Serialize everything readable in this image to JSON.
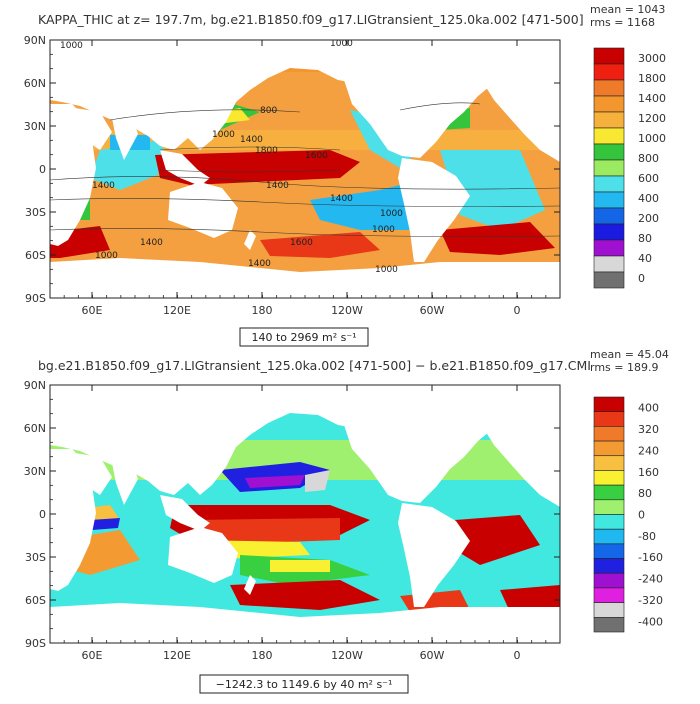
{
  "chart_data": [
    {
      "type": "heatmap",
      "title": "KAPPA_THIC at z= 197.7m, bg.e21.B1850.f09_g17.LIGtransient_125.0ka.002 [471-500]",
      "stats": {
        "mean": "mean = 1043",
        "rms": "rms = 1168"
      },
      "x_ticks": [
        "60E",
        "120E",
        "180",
        "120W",
        "60W",
        "0"
      ],
      "y_ticks": [
        "90N",
        "60N",
        "30N",
        "0",
        "30S",
        "60S",
        "90S"
      ],
      "colorbar_levels": [
        "3000",
        "1800",
        "1400",
        "1200",
        "1000",
        "800",
        "600",
        "400",
        "200",
        "80",
        "40",
        "0"
      ],
      "colorbar_colors": [
        "#c80000",
        "#f02010",
        "#ee7a2a",
        "#f3962e",
        "#f6b13c",
        "#f8e832",
        "#35c53c",
        "#9aeb62",
        "#4de0e8",
        "#23b8f0",
        "#1466e6",
        "#1a1ae0",
        "#a010d0",
        "#d8d8d8",
        "#707070"
      ],
      "range_label": "140 to 2969 m² s⁻¹",
      "contour_labels": [
        "1000",
        "1000",
        "800",
        "1000",
        "1400",
        "1800",
        "1600",
        "1400",
        "1400",
        "1400",
        "1000",
        "1000",
        "1400",
        "1600",
        "1400",
        "1000",
        "1000"
      ]
    },
    {
      "type": "heatmap",
      "title": "bg.e21.B1850.f09_g17.LIGtransient_125.0ka.002 [471-500] − b.e21.B1850.f09_g17.CMI",
      "stats": {
        "mean": "mean = 45.04",
        "rms": "rms = 189.9"
      },
      "x_ticks": [
        "60E",
        "120E",
        "180",
        "120W",
        "60W",
        "0"
      ],
      "y_ticks": [
        "90N",
        "60N",
        "30N",
        "0",
        "30S",
        "60S",
        "90S"
      ],
      "colorbar_levels": [
        "400",
        "320",
        "240",
        "160",
        "80",
        "0",
        "-80",
        "-160",
        "-240",
        "-320",
        "-400"
      ],
      "colorbar_colors": [
        "#c80000",
        "#e83818",
        "#f07a2a",
        "#f49a32",
        "#f8c040",
        "#f8f030",
        "#38d040",
        "#a0f070",
        "#40e8e0",
        "#20b8f0",
        "#1468e8",
        "#2020e0",
        "#a010d0",
        "#e020e0",
        "#d8d8d8",
        "#707070"
      ],
      "range_label": "−1242.3 to 1149.6 by 40 m² s⁻¹"
    }
  ]
}
